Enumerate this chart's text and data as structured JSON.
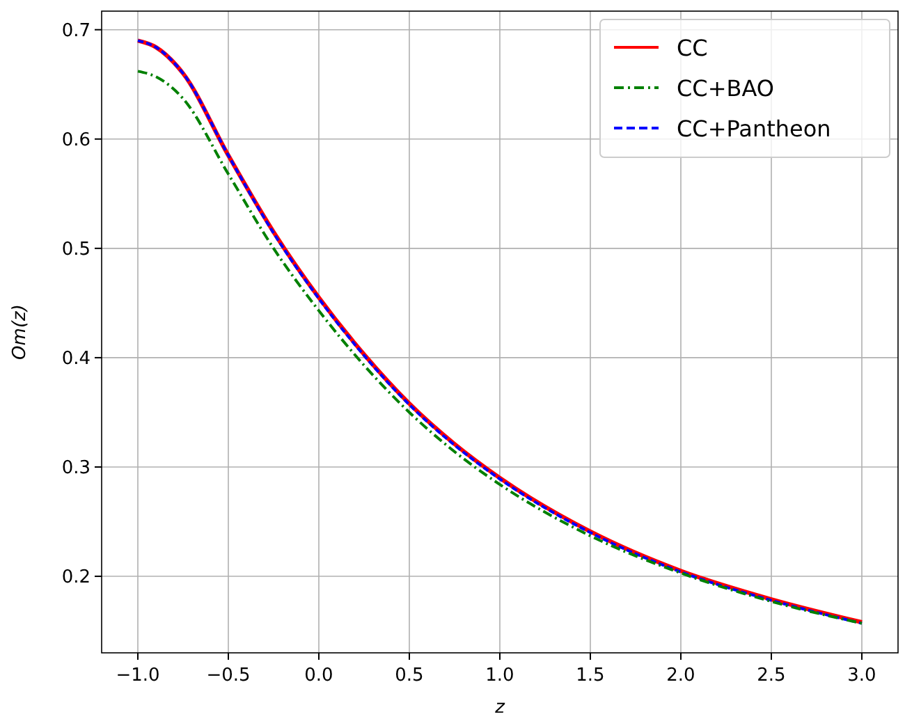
{
  "chart_data": {
    "type": "line",
    "xlabel": "z",
    "ylabel": "Om(z)",
    "x": [
      -1,
      -0.9,
      -0.75,
      -0.5,
      -0.25,
      0,
      0.25,
      0.5,
      0.75,
      1,
      1.5,
      2,
      2.5,
      3
    ],
    "xlim": [
      -1.2,
      3.2
    ],
    "ylim": [
      0.13,
      0.717
    ],
    "xticks": [
      {
        "value": -1,
        "label": "−1.0"
      },
      {
        "value": -0.5,
        "label": "−0.5"
      },
      {
        "value": 0,
        "label": "0.0"
      },
      {
        "value": 0.5,
        "label": "0.5"
      },
      {
        "value": 1,
        "label": "1.0"
      },
      {
        "value": 1.5,
        "label": "1.5"
      },
      {
        "value": 2,
        "label": "2.0"
      },
      {
        "value": 2.5,
        "label": "2.5"
      },
      {
        "value": 3,
        "label": "3.0"
      }
    ],
    "yticks": [
      {
        "value": 0.2,
        "label": "0.2"
      },
      {
        "value": 0.3,
        "label": "0.3"
      },
      {
        "value": 0.4,
        "label": "0.4"
      },
      {
        "value": 0.5,
        "label": "0.5"
      },
      {
        "value": 0.6,
        "label": "0.6"
      },
      {
        "value": 0.7,
        "label": "0.7"
      }
    ],
    "grid": true,
    "legend": "top right",
    "marker": "none",
    "series": [
      {
        "name": "CC",
        "color": "#ff0000",
        "line_style": "solid",
        "values": [
          0.69,
          0.684,
          0.66,
          0.585,
          0.515,
          0.455,
          0.403,
          0.358,
          0.321,
          0.29,
          0.241,
          0.205,
          0.179,
          0.158
        ]
      },
      {
        "name": "CC+BAO",
        "color": "#008000",
        "line_style": "dashdot",
        "values": [
          0.662,
          0.657,
          0.637,
          0.568,
          0.5,
          0.443,
          0.393,
          0.35,
          0.314,
          0.284,
          0.237,
          0.203,
          0.177,
          0.157
        ]
      },
      {
        "name": "CC+Pantheon",
        "color": "#0000ff",
        "line_style": "dashed",
        "values": [
          0.69,
          0.684,
          0.66,
          0.585,
          0.514,
          0.454,
          0.402,
          0.357,
          0.32,
          0.289,
          0.24,
          0.204,
          0.178,
          0.157
        ]
      }
    ]
  }
}
